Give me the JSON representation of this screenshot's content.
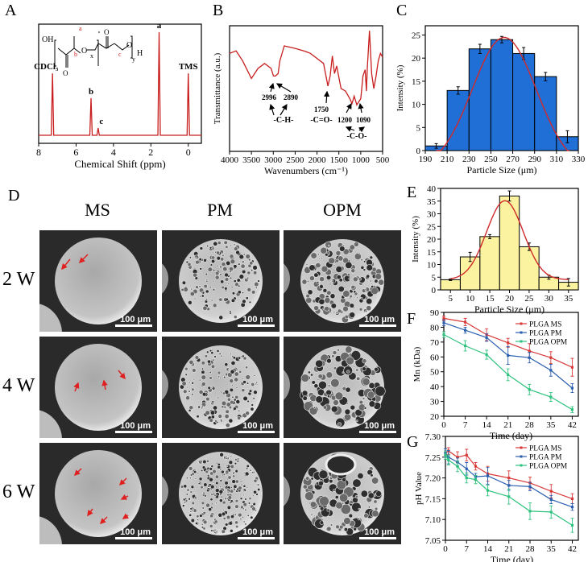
{
  "panels": {
    "A": "A",
    "B": "B",
    "C": "C",
    "D": "D",
    "E": "E",
    "F": "F",
    "G": "G"
  },
  "sem": {
    "columns": [
      "MS",
      "PM",
      "OPM"
    ],
    "rows": [
      "2 W",
      "4 W",
      "6 W"
    ],
    "scale_bar": "100 μm",
    "arrow_color": "#e02020"
  },
  "chart_data": [
    {
      "id": "A",
      "type": "line",
      "xlabel": "Chemical Shift (ppm)",
      "ylabel": "",
      "xlim": [
        8,
        -0.7
      ],
      "xticks": [
        8,
        6,
        4,
        2,
        0
      ],
      "color": "#c81e1e",
      "peaks": [
        {
          "x": 7.26,
          "h": 0.6,
          "label": "CDCl3"
        },
        {
          "x": 5.2,
          "h": 0.36,
          "label": "b"
        },
        {
          "x": 4.82,
          "h": 0.07,
          "label": "c"
        },
        {
          "x": 1.56,
          "h": 1.0,
          "label": "a"
        },
        {
          "x": 0,
          "h": 0.6,
          "label": "TMS"
        }
      ],
      "structure_labels": [
        "OH",
        "O",
        "O",
        "x",
        "O",
        "O",
        "y",
        "H",
        "a",
        "b",
        "c"
      ]
    },
    {
      "id": "B",
      "type": "line",
      "xlabel": "Wavenumbers (cm⁻¹)",
      "ylabel": "Transmittance (a.u.)",
      "xlim": [
        4000,
        500
      ],
      "xticks": [
        4000,
        3500,
        3000,
        2500,
        2000,
        1500,
        1000,
        500
      ],
      "color": "#c81e1e",
      "points": [
        [
          4000,
          0.78
        ],
        [
          3850,
          0.8
        ],
        [
          3700,
          0.72
        ],
        [
          3600,
          0.65
        ],
        [
          3500,
          0.58
        ],
        [
          3350,
          0.66
        ],
        [
          3200,
          0.7
        ],
        [
          3050,
          0.66
        ],
        [
          2996,
          0.6
        ],
        [
          2950,
          0.6
        ],
        [
          2890,
          0.62
        ],
        [
          2850,
          0.72
        ],
        [
          2750,
          0.84
        ],
        [
          2500,
          0.82
        ],
        [
          2300,
          0.8
        ],
        [
          2150,
          0.78
        ],
        [
          2000,
          0.74
        ],
        [
          1850,
          0.7
        ],
        [
          1750,
          0.52
        ],
        [
          1700,
          0.6
        ],
        [
          1650,
          0.76
        ],
        [
          1600,
          0.62
        ],
        [
          1550,
          0.68
        ],
        [
          1450,
          0.5
        ],
        [
          1350,
          0.48
        ],
        [
          1250,
          0.42
        ],
        [
          1200,
          0.38
        ],
        [
          1150,
          0.44
        ],
        [
          1090,
          0.37
        ],
        [
          1000,
          0.42
        ],
        [
          950,
          0.6
        ],
        [
          900,
          0.65
        ],
        [
          870,
          0.48
        ],
        [
          850,
          0.66
        ],
        [
          800,
          0.96
        ],
        [
          750,
          0.62
        ],
        [
          700,
          0.5
        ],
        [
          650,
          0.6
        ],
        [
          600,
          0.72
        ],
        [
          550,
          0.78
        ],
        [
          500,
          0.75
        ]
      ],
      "annotations": [
        {
          "x": 2996,
          "label": "2996"
        },
        {
          "x": 2890,
          "label": "2890"
        },
        {
          "group": "-C-H-"
        },
        {
          "x": 1750,
          "label": "1750"
        },
        {
          "group": "-C=O-"
        },
        {
          "x": 1200,
          "label": "1200"
        },
        {
          "x": 1090,
          "label": "1090"
        },
        {
          "group": "-C-O-"
        }
      ]
    },
    {
      "id": "C",
      "type": "bar",
      "xlabel": "Particle Size (μm)",
      "ylabel": "Intensity (%)",
      "xlim": [
        190,
        330
      ],
      "ylim": [
        0,
        27
      ],
      "xticks": [
        190,
        210,
        230,
        250,
        270,
        290,
        310,
        330
      ],
      "yticks": [
        0,
        5,
        10,
        15,
        20,
        25
      ],
      "color": "#1f6fd6",
      "fit_color": "#d02a2a",
      "categories": [
        200,
        220,
        240,
        260,
        280,
        300,
        320
      ],
      "values": [
        1,
        13,
        22,
        24,
        21,
        16,
        3
      ],
      "errors": [
        0.5,
        0.8,
        1.0,
        0.7,
        1.3,
        0.9,
        1.3
      ]
    },
    {
      "id": "E",
      "type": "bar",
      "xlabel": "Particle Size (μm)",
      "ylabel": "Intensity (%)",
      "xlim": [
        2.5,
        37.5
      ],
      "ylim": [
        0,
        40
      ],
      "xticks": [
        5,
        10,
        15,
        20,
        25,
        30,
        35
      ],
      "yticks": [
        0,
        5,
        10,
        15,
        20,
        25,
        30,
        35,
        40
      ],
      "color": "#fbf3a0",
      "fit_color": "#d02a2a",
      "categories": [
        5,
        10,
        15,
        20,
        25,
        30,
        35
      ],
      "values": [
        4,
        13,
        21,
        37,
        17,
        5,
        3
      ],
      "errors": [
        0.3,
        1.8,
        0.8,
        2.0,
        1.5,
        0.8,
        1.5
      ]
    },
    {
      "id": "F",
      "type": "line",
      "xlabel": "Time (day)",
      "ylabel": "Mn (kDa)",
      "xlim": [
        0,
        44
      ],
      "ylim": [
        20,
        90
      ],
      "xticks": [
        0,
        7,
        14,
        21,
        28,
        35,
        42
      ],
      "yticks": [
        20,
        30,
        40,
        50,
        60,
        70,
        80,
        90
      ],
      "legend": "top-right",
      "x": [
        0,
        7,
        14,
        21,
        28,
        35,
        42
      ],
      "series": [
        {
          "name": "PLGA MS",
          "color": "#d83a3a",
          "values": [
            86,
            83.5,
            75,
            69.5,
            64,
            59.5,
            53
          ],
          "errors": [
            1.5,
            2.5,
            4,
            3,
            5,
            4,
            6
          ]
        },
        {
          "name": "PLGA PM",
          "color": "#2a5fb0",
          "values": [
            83,
            78,
            73,
            61,
            59.5,
            51,
            39
          ],
          "errors": [
            2,
            2,
            2.5,
            6,
            3.5,
            4,
            3
          ]
        },
        {
          "name": "PLGA OPM",
          "color": "#2ec27e",
          "values": [
            75,
            67.5,
            61.5,
            48,
            38,
            33,
            24.5
          ],
          "errors": [
            2,
            3.5,
            3,
            4,
            3.5,
            3,
            2
          ]
        }
      ]
    },
    {
      "id": "G",
      "type": "line",
      "xlabel": "Time (day)",
      "ylabel": "pH Value",
      "xlim": [
        0,
        44
      ],
      "ylim": [
        7.05,
        7.3
      ],
      "xticks": [
        0,
        7,
        14,
        21,
        28,
        35,
        42
      ],
      "yticks": [
        7.05,
        7.1,
        7.15,
        7.2,
        7.25,
        7.3
      ],
      "legend": "top-right",
      "x": [
        0,
        1,
        4,
        7,
        10,
        14,
        21,
        28,
        35,
        42
      ],
      "series": [
        {
          "name": "PLGA MS",
          "color": "#d83a3a",
          "values": [
            7.26,
            7.265,
            7.25,
            7.255,
            7.228,
            7.21,
            7.2,
            7.188,
            7.168,
            7.15
          ],
          "errors": [
            0.005,
            0.008,
            0.013,
            0.014,
            0.009,
            0.018,
            0.017,
            0.014,
            0.016,
            0.012
          ]
        },
        {
          "name": "PLGA PM",
          "color": "#2a5fb0",
          "values": [
            7.26,
            7.25,
            7.238,
            7.222,
            7.203,
            7.205,
            7.182,
            7.179,
            7.148,
            7.13
          ],
          "errors": [
            0.01,
            0.016,
            0.01,
            0.015,
            0.008,
            0.02,
            0.012,
            0.01,
            0.01,
            0.008
          ]
        },
        {
          "name": "PLGA OPM",
          "color": "#2ec27e",
          "values": [
            7.255,
            7.243,
            7.228,
            7.2,
            7.196,
            7.17,
            7.155,
            7.12,
            7.118,
            7.086
          ],
          "errors": [
            0.01,
            0.012,
            0.013,
            0.012,
            0.01,
            0.013,
            0.018,
            0.02,
            0.015,
            0.017
          ]
        }
      ]
    }
  ]
}
